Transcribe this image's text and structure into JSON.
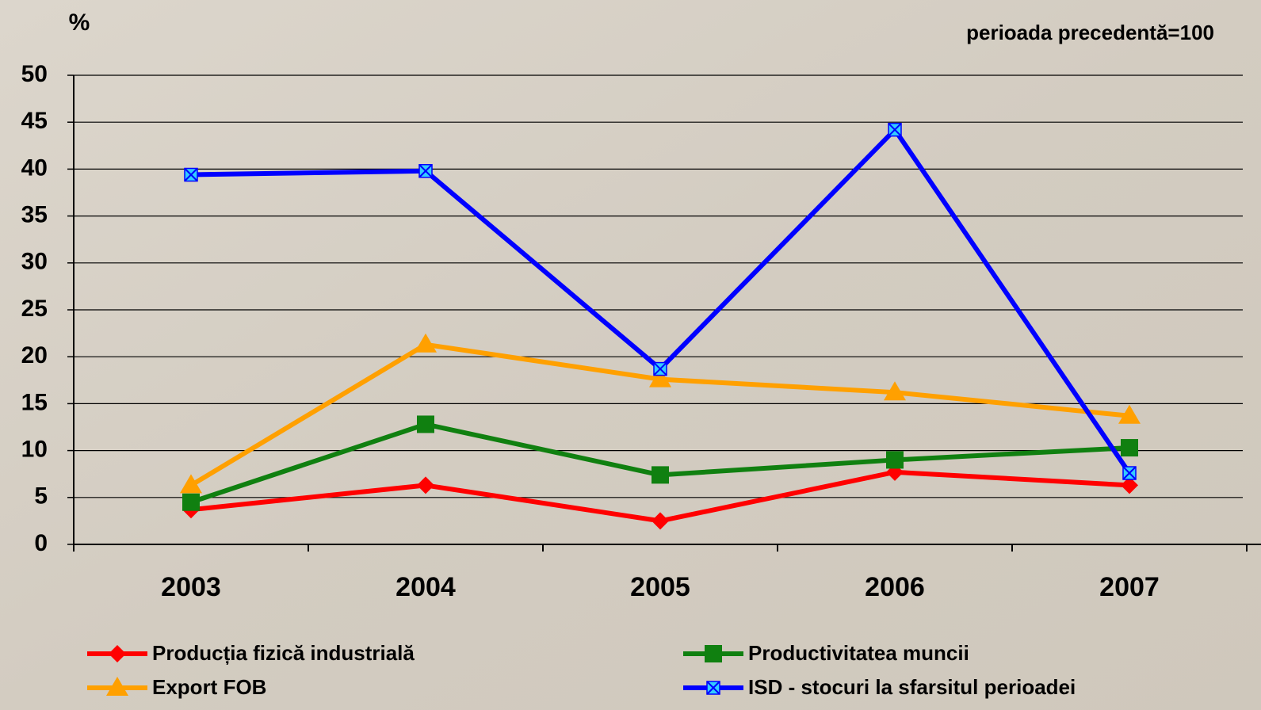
{
  "chart_data": {
    "type": "line",
    "ylabel": "%",
    "annotation": "perioada precedentă=100",
    "categories": [
      "2003",
      "2004",
      "2005",
      "2006",
      "2007"
    ],
    "series": [
      {
        "name": "Producția fizică industrială",
        "color": "#ff0000",
        "marker": "diamond",
        "values": [
          3.7,
          6.3,
          2.5,
          7.7,
          6.3
        ]
      },
      {
        "name": "Productivitatea muncii",
        "color": "#108010",
        "marker": "square",
        "values": [
          4.5,
          12.8,
          7.4,
          9.0,
          10.3
        ]
      },
      {
        "name": "Export FOB",
        "color": "#ffa000",
        "marker": "triangle",
        "values": [
          6.3,
          21.3,
          17.6,
          16.2,
          13.7
        ]
      },
      {
        "name": "ISD -  stocuri la sfarsitul perioadei",
        "color": "#0000ff",
        "marker": "xsquare",
        "values": [
          39.4,
          39.8,
          18.7,
          44.2,
          7.6
        ]
      }
    ],
    "ylim": [
      0,
      50
    ],
    "yticks": [
      0,
      5,
      10,
      15,
      20,
      25,
      30,
      35,
      40,
      45,
      50
    ],
    "grid": true
  }
}
